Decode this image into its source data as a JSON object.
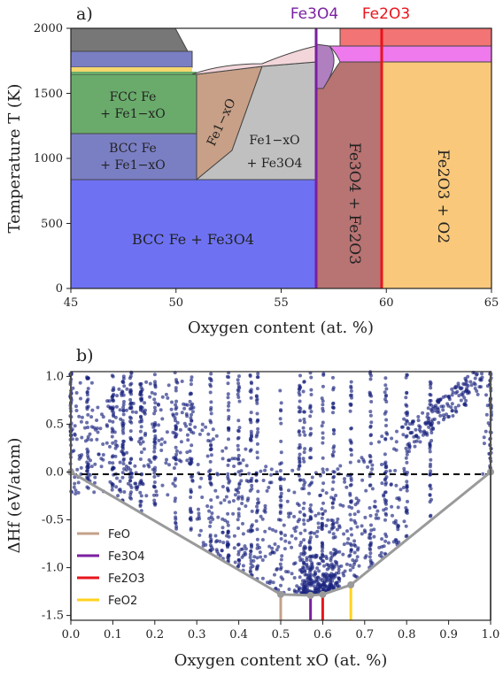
{
  "panel_a": {
    "label": "a)",
    "xlabel": "Oxygen content (at. %)",
    "ylabel": "Temperature T (K)",
    "x_ticks": [
      "45",
      "50",
      "55",
      "60",
      "65"
    ],
    "y_ticks": [
      "0",
      "500",
      "1000",
      "1500",
      "2000"
    ],
    "top_label_fe3o4": "Fe3O4",
    "top_label_fe2o3": "Fe2O3",
    "regions": {
      "fcc": "FCC Fe",
      "fcc2": "+ Fe1−xO",
      "bcc": "BCC Fe",
      "bcc2": "+ Fe1−xO",
      "wustite": "Fe1−xO",
      "fe1xo_fe3o4": "Fe1−xO",
      "fe1xo_fe3o4_2": "+ Fe3O4",
      "bcc_fe3o4": "BCC Fe + Fe3O4",
      "fe3o4_fe2o3": "Fe3O4 + Fe2O3",
      "fe2o3_o2": "Fe2O3 + O2"
    }
  },
  "panel_b": {
    "label": "b)",
    "xlabel": "Oxygen content xO (at. %)",
    "ylabel": "ΔHf (eV/atom)",
    "x_ticks": [
      "0.0",
      "0.1",
      "0.2",
      "0.3",
      "0.4",
      "0.5",
      "0.6",
      "0.7",
      "0.8",
      "0.9",
      "1.0"
    ],
    "y_ticks": [
      "1.0",
      "0.5",
      "0.0",
      "-0.5",
      "-1.0",
      "-1.5"
    ],
    "legend": [
      {
        "name": "FeO",
        "color": "#c4a08a"
      },
      {
        "name": "Fe3O4",
        "color": "#7b1fa2"
      },
      {
        "name": "Fe2O3",
        "color": "#e8141c"
      },
      {
        "name": "FeO2",
        "color": "#ffd21f"
      }
    ]
  },
  "chart_data": [
    {
      "type": "area",
      "title": "",
      "xlabel": "Oxygen content (at. %)",
      "ylabel": "Temperature T (K)",
      "xlim": [
        45,
        65
      ],
      "ylim": [
        0,
        2000
      ],
      "vertical_lines": [
        {
          "name": "Fe3O4",
          "x": 57.14,
          "color": "#7b1fa2"
        },
        {
          "name": "Fe2O3",
          "x": 60.0,
          "color": "#e8141c"
        }
      ],
      "regions": [
        {
          "name": "BCC Fe + Fe3O4",
          "color": "#6e72f2",
          "x": [
            45,
            57
          ],
          "t": [
            0,
            833
          ]
        },
        {
          "name": "BCC Fe + Fe1-xO",
          "color": "#7a7fc4",
          "x": [
            45,
            51
          ],
          "t": [
            833,
            1184
          ]
        },
        {
          "name": "FCC Fe + Fe1-xO",
          "color": "#6aab6b",
          "x": [
            45,
            51
          ],
          "t": [
            1184,
            1665
          ]
        },
        {
          "name": "Fe1-xO",
          "color": "#c8a087",
          "x": [
            51,
            55
          ],
          "t": [
            833,
            1700
          ]
        },
        {
          "name": "Fe1-xO + Fe3O4",
          "color": "#c0c0c0",
          "x": [
            51,
            57
          ],
          "t": [
            833,
            1700
          ]
        },
        {
          "name": "Fe3O4 + Fe2O3",
          "color": "#b87373",
          "x": [
            57,
            60
          ],
          "t": [
            0,
            1800
          ]
        },
        {
          "name": "Fe2O3 + O2",
          "color": "#f9c87a",
          "x": [
            60,
            65
          ],
          "t": [
            0,
            1730
          ]
        }
      ]
    },
    {
      "type": "scatter",
      "title": "",
      "xlabel": "Oxygen content xO (at. %)",
      "ylabel": "ΔHf (eV/atom)",
      "xlim": [
        0,
        1
      ],
      "ylim": [
        -1.55,
        1.05
      ],
      "convex_hull": {
        "x": [
          0.0,
          0.5,
          0.571,
          0.6,
          0.667,
          1.0
        ],
        "y": [
          0.0,
          -1.28,
          -1.29,
          -1.28,
          -1.18,
          0.0
        ]
      },
      "reference_lines": [
        {
          "name": "FeO",
          "x": 0.5,
          "color": "#c4a08a"
        },
        {
          "name": "Fe3O4",
          "x": 0.571,
          "color": "#7b1fa2"
        },
        {
          "name": "Fe2O3",
          "x": 0.6,
          "color": "#e8141c"
        },
        {
          "name": "FeO2",
          "x": 0.667,
          "color": "#ffd21f"
        }
      ],
      "vertical_clusters": [
        0.0,
        0.04,
        0.1,
        0.125,
        0.143,
        0.167,
        0.2,
        0.25,
        0.286,
        0.333,
        0.375,
        0.4,
        0.429,
        0.444,
        0.5,
        0.545,
        0.556,
        0.571,
        0.6,
        0.625,
        0.667,
        0.714,
        0.75,
        0.8,
        0.857,
        1.0
      ]
    }
  ]
}
